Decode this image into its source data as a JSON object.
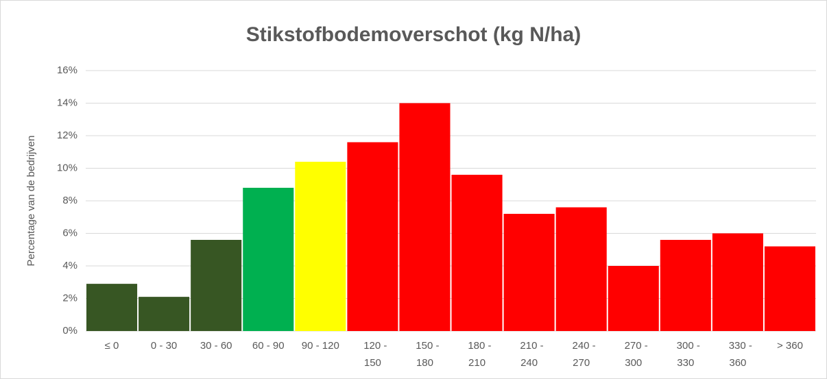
{
  "chart_data": {
    "type": "bar",
    "title": "Stikstofbodemoverschot (kg N/ha)",
    "y_label": "Percentage van de bedrijven",
    "categories": [
      "≤ 0",
      "0 - 30",
      "30 - 60",
      "60 - 90",
      "90 - 120",
      "120 - 150",
      "150 - 180",
      "180 - 210",
      "210 - 240",
      "240 - 270",
      "270 - 300",
      "300 - 330",
      "330 - 360",
      "> 360"
    ],
    "values": [
      2.9,
      2.1,
      5.6,
      8.8,
      10.4,
      11.6,
      14.0,
      9.6,
      7.2,
      7.6,
      4.0,
      5.6,
      6.0,
      5.2
    ],
    "colors": [
      "#375623",
      "#375623",
      "#375623",
      "#00b050",
      "#ffff00",
      "#ff0000",
      "#ff0000",
      "#ff0000",
      "#ff0000",
      "#ff0000",
      "#ff0000",
      "#ff0000",
      "#ff0000",
      "#ff0000"
    ],
    "ylim": [
      0,
      16
    ],
    "yticks": [
      {
        "value": 0,
        "label": "0%"
      },
      {
        "value": 2,
        "label": "2%"
      },
      {
        "value": 4,
        "label": "4%"
      },
      {
        "value": 6,
        "label": "6%"
      },
      {
        "value": 8,
        "label": "8%"
      },
      {
        "value": 10,
        "label": "10%"
      },
      {
        "value": 12,
        "label": "12%"
      },
      {
        "value": 14,
        "label": "14%"
      },
      {
        "value": 16,
        "label": "16%"
      }
    ],
    "grid": true
  }
}
